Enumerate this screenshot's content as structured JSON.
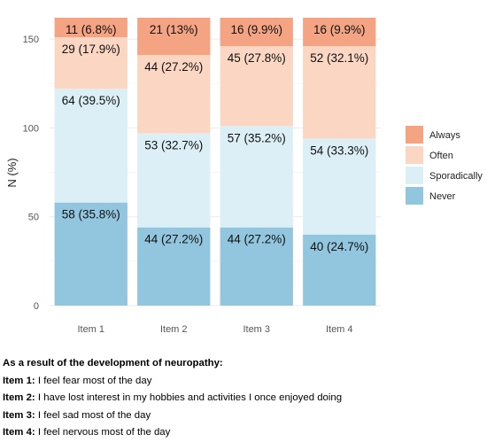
{
  "chart_data": {
    "type": "bar",
    "stacked": true,
    "categories": [
      "Item 1",
      "Item 2",
      "Item 3",
      "Item 4"
    ],
    "ylabel": "N (%)",
    "xlabel": "",
    "ylim": [
      0,
      162
    ],
    "yticks": [
      0,
      50,
      100,
      150
    ],
    "grid": true,
    "legend_position": "right",
    "series": [
      {
        "name": "Never",
        "color": "#92c5de",
        "values": [
          58,
          44,
          44,
          40
        ],
        "labels": [
          "58 (35.8%)",
          "44 (27.2%)",
          "44 (27.2%)",
          "40 (24.7%)"
        ]
      },
      {
        "name": "Sporadically",
        "color": "#dceff7",
        "values": [
          64,
          53,
          57,
          54
        ],
        "labels": [
          "64 (39.5%)",
          "53 (32.7%)",
          "57 (35.2%)",
          "54 (33.3%)"
        ]
      },
      {
        "name": "Often",
        "color": "#fbd6c2",
        "values": [
          29,
          44,
          45,
          52
        ],
        "labels": [
          "29 (17.9%)",
          "44 (27.2%)",
          "45 (27.8%)",
          "52 (32.1%)"
        ]
      },
      {
        "name": "Always",
        "color": "#f4a482",
        "values": [
          11,
          21,
          16,
          16
        ],
        "labels": [
          "11 (6.8%)",
          "21 (13%)",
          "16 (9.9%)",
          "16 (9.9%)"
        ]
      }
    ],
    "legend_order": [
      "Always",
      "Often",
      "Sporadically",
      "Never"
    ]
  },
  "caption": {
    "heading": "As a result of the development of neuropathy:",
    "items": [
      {
        "label": "Item 1:",
        "text": " I feel fear most of the day"
      },
      {
        "label": "Item 2:",
        "text": " I have lost interest in my hobbies and activities I once enjoyed doing"
      },
      {
        "label": "Item 3:",
        "text": " I feel sad most of the day"
      },
      {
        "label": "Item 4:",
        "text": " I feel nervous most of the day"
      }
    ]
  }
}
